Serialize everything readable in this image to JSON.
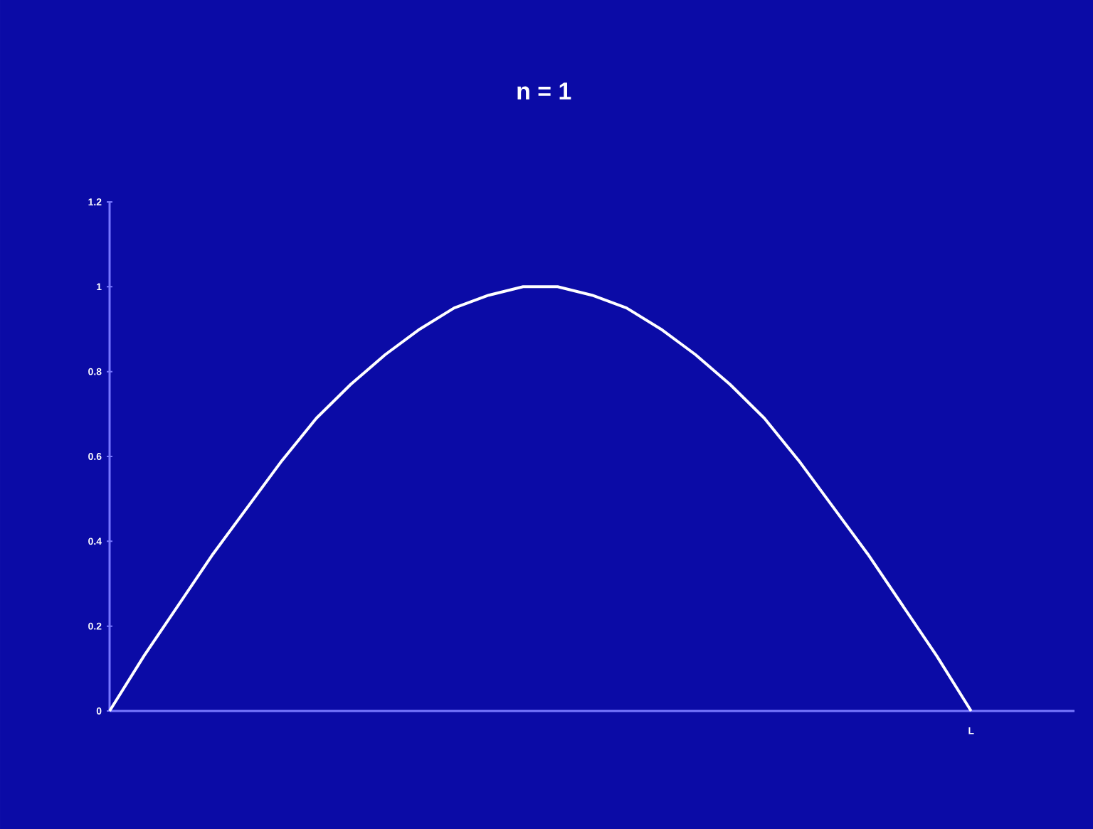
{
  "chart_data": {
    "type": "line",
    "title": "n = 1",
    "categories": [
      null,
      null,
      null,
      null,
      null,
      null,
      null,
      null,
      null,
      null,
      null,
      null,
      null,
      null,
      null,
      null,
      null,
      null,
      null,
      null,
      null,
      null,
      null,
      null,
      null,
      null
    ],
    "values": [
      0,
      0.13,
      0.25,
      0.37,
      0.48,
      0.59,
      0.69,
      0.77,
      0.84,
      0.9,
      0.95,
      0.98,
      1,
      1,
      0.98,
      0.95,
      0.9,
      0.84,
      0.77,
      0.69,
      0.59,
      0.48,
      0.37,
      0.25,
      0.13,
      0
    ],
    "color": "#ffffff",
    "annotations": [
      "L"
    ],
    "tick_labels": "y",
    "ylim": [
      0,
      1.2
    ],
    "yticks": [
      {
        "value": 0,
        "label": "0"
      },
      {
        "value": 0.2,
        "label": "0.2"
      },
      {
        "value": 0.4,
        "label": "0.4"
      },
      {
        "value": 0.6,
        "label": "0.6"
      },
      {
        "value": 0.8,
        "label": "0.8"
      },
      {
        "value": 1,
        "label": "1"
      },
      {
        "value": 1.2,
        "label": "1.2"
      }
    ]
  }
}
